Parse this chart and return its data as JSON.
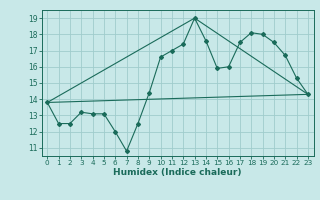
{
  "title": "",
  "xlabel": "Humidex (Indice chaleur)",
  "bg_color": "#c8e8e8",
  "grid_color": "#a0cccc",
  "line_color": "#1a6b5a",
  "xlim": [
    -0.5,
    23.5
  ],
  "ylim": [
    10.5,
    19.5
  ],
  "xticks": [
    0,
    1,
    2,
    3,
    4,
    5,
    6,
    7,
    8,
    9,
    10,
    11,
    12,
    13,
    14,
    15,
    16,
    17,
    18,
    19,
    20,
    21,
    22,
    23
  ],
  "yticks": [
    11,
    12,
    13,
    14,
    15,
    16,
    17,
    18,
    19
  ],
  "series1_x": [
    0,
    1,
    2,
    3,
    4,
    5,
    6,
    7,
    8,
    9,
    10,
    11,
    12,
    13,
    14,
    15,
    16,
    17,
    18,
    19,
    20,
    21,
    22,
    23
  ],
  "series1_y": [
    13.8,
    12.5,
    12.5,
    13.2,
    13.1,
    13.1,
    12.0,
    10.8,
    12.5,
    14.4,
    16.6,
    17.0,
    17.4,
    19.0,
    17.6,
    15.9,
    16.0,
    17.5,
    18.1,
    18.0,
    17.5,
    16.7,
    15.3,
    14.3
  ],
  "series2_x": [
    0,
    23
  ],
  "series2_y": [
    13.8,
    14.3
  ],
  "series3_x": [
    0,
    13,
    23
  ],
  "series3_y": [
    13.8,
    19.0,
    14.3
  ]
}
